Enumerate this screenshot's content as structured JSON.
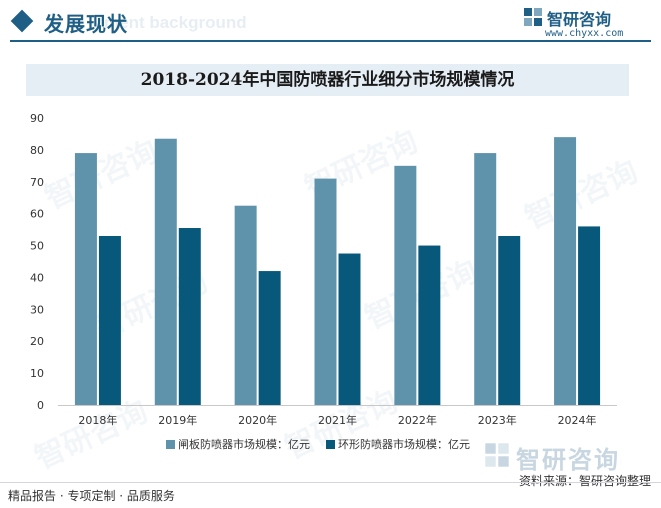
{
  "header": {
    "title": "发展现状",
    "bg_text": "ment background",
    "logo_name": "智研咨询",
    "logo_url": "www.chyxx.com"
  },
  "chart_data": {
    "type": "bar",
    "title": "2018-2024年中国防喷器行业细分市场规模情况",
    "categories": [
      "2018年",
      "2019年",
      "2020年",
      "2021年",
      "2022年",
      "2023年",
      "2024年"
    ],
    "series": [
      {
        "name": "闸板防喷器市场规模：亿元",
        "values": [
          79,
          83.5,
          62.5,
          71,
          75,
          79,
          84
        ],
        "color": "#5f93ab"
      },
      {
        "name": "环形防喷器市场规模：亿元",
        "values": [
          53,
          55.5,
          42,
          47.5,
          50,
          53,
          56
        ],
        "color": "#07587a"
      }
    ],
    "yticks": [
      0,
      10,
      20,
      30,
      40,
      50,
      60,
      70,
      80,
      90
    ],
    "ylim": [
      0,
      90
    ],
    "grid": false,
    "legend": "bottom"
  },
  "watermark": {
    "text": "智研咨询"
  },
  "bottom_logo": {
    "text": "智研咨询"
  },
  "footer": {
    "left": "精品报告 · 专项定制 · 品质服务",
    "right": "资料来源：智研咨询整理"
  }
}
